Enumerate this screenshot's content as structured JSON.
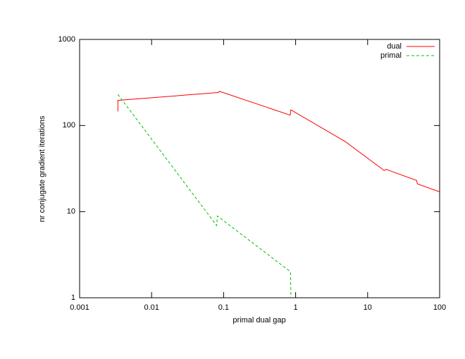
{
  "chart_data": {
    "type": "line",
    "xlabel": "primal dual gap",
    "ylabel": "nr conjugate gradient iterations",
    "xscale": "log",
    "yscale": "log",
    "xlim": [
      0.001,
      100
    ],
    "xticks": [
      0.001,
      0.01,
      0.1,
      1,
      10,
      100
    ],
    "ylim": [
      1,
      1000
    ],
    "yticks": [
      1,
      10,
      100,
      1000
    ],
    "legend": "top-right",
    "series": [
      {
        "name": "dual",
        "color": "#ff0000",
        "dash": false,
        "x": [
          0.0034,
          0.0034,
          0.085,
          0.087,
          0.84,
          0.86,
          4.9,
          17,
          18,
          48,
          49,
          100
        ],
        "values": [
          146,
          196,
          242,
          250,
          132,
          152,
          65,
          30,
          31,
          23,
          21,
          17
        ]
      },
      {
        "name": "primal",
        "color": "#00c000",
        "dash": true,
        "x": [
          0.0034,
          0.08,
          0.082,
          0.85,
          0.86
        ],
        "values": [
          230,
          6.9,
          8.9,
          2,
          1
        ]
      }
    ]
  }
}
